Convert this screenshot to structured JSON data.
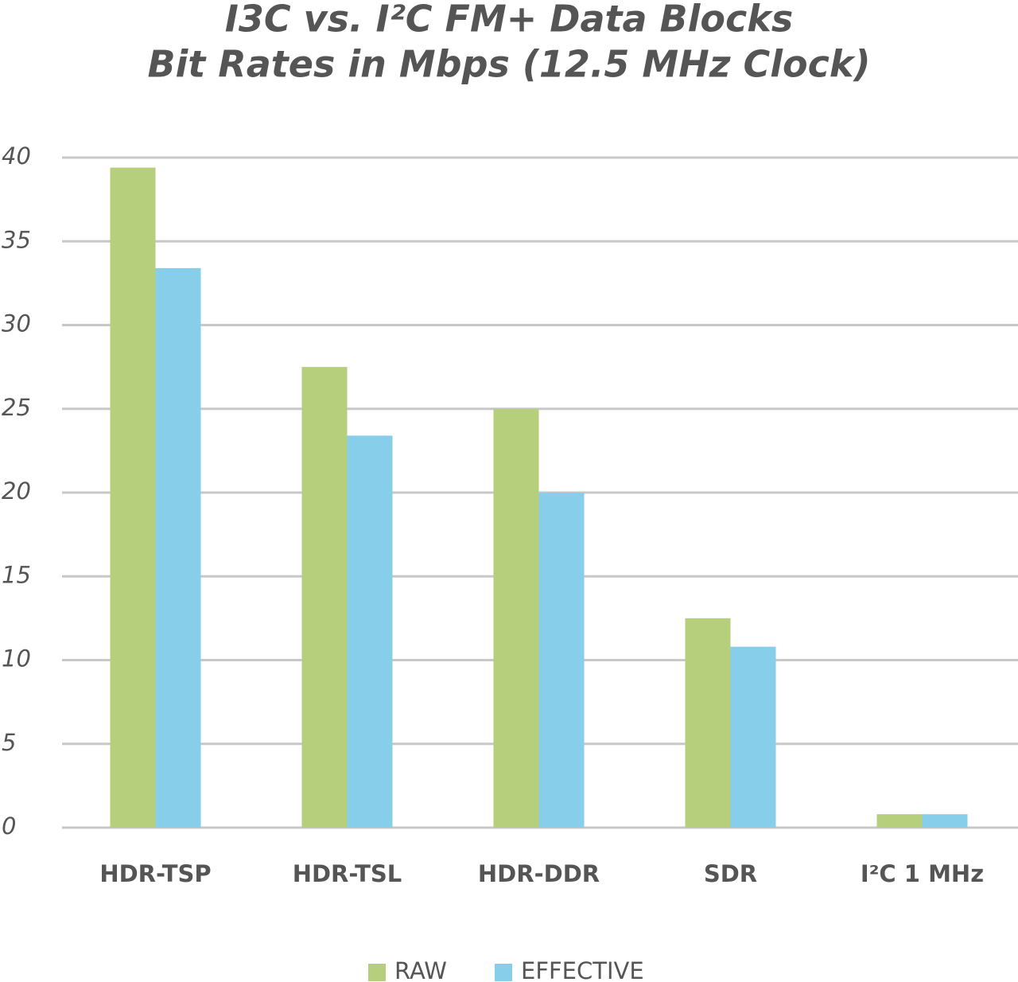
{
  "chart_data": {
    "type": "bar",
    "title": [
      "I3C vs. I²C FM+ Data Blocks",
      "Bit Rates in Mbps (12.5 MHz Clock)"
    ],
    "categories": [
      "HDR-TSP",
      "HDR-TSL",
      "HDR-DDR",
      "SDR",
      "I²C 1 MHz"
    ],
    "series": [
      {
        "name": "RAW",
        "color": "#b5cf7c",
        "values": [
          39.4,
          27.5,
          25,
          12.5,
          0.8
        ]
      },
      {
        "name": "EFFECTIVE",
        "color": "#87ceeb",
        "values": [
          33.4,
          23.4,
          20,
          10.8,
          0.8
        ]
      }
    ],
    "ylim": [
      0,
      40
    ],
    "yticks": [
      0,
      5,
      10,
      15,
      20,
      25,
      30,
      35,
      40
    ],
    "grid": true,
    "legend": "bottom"
  }
}
